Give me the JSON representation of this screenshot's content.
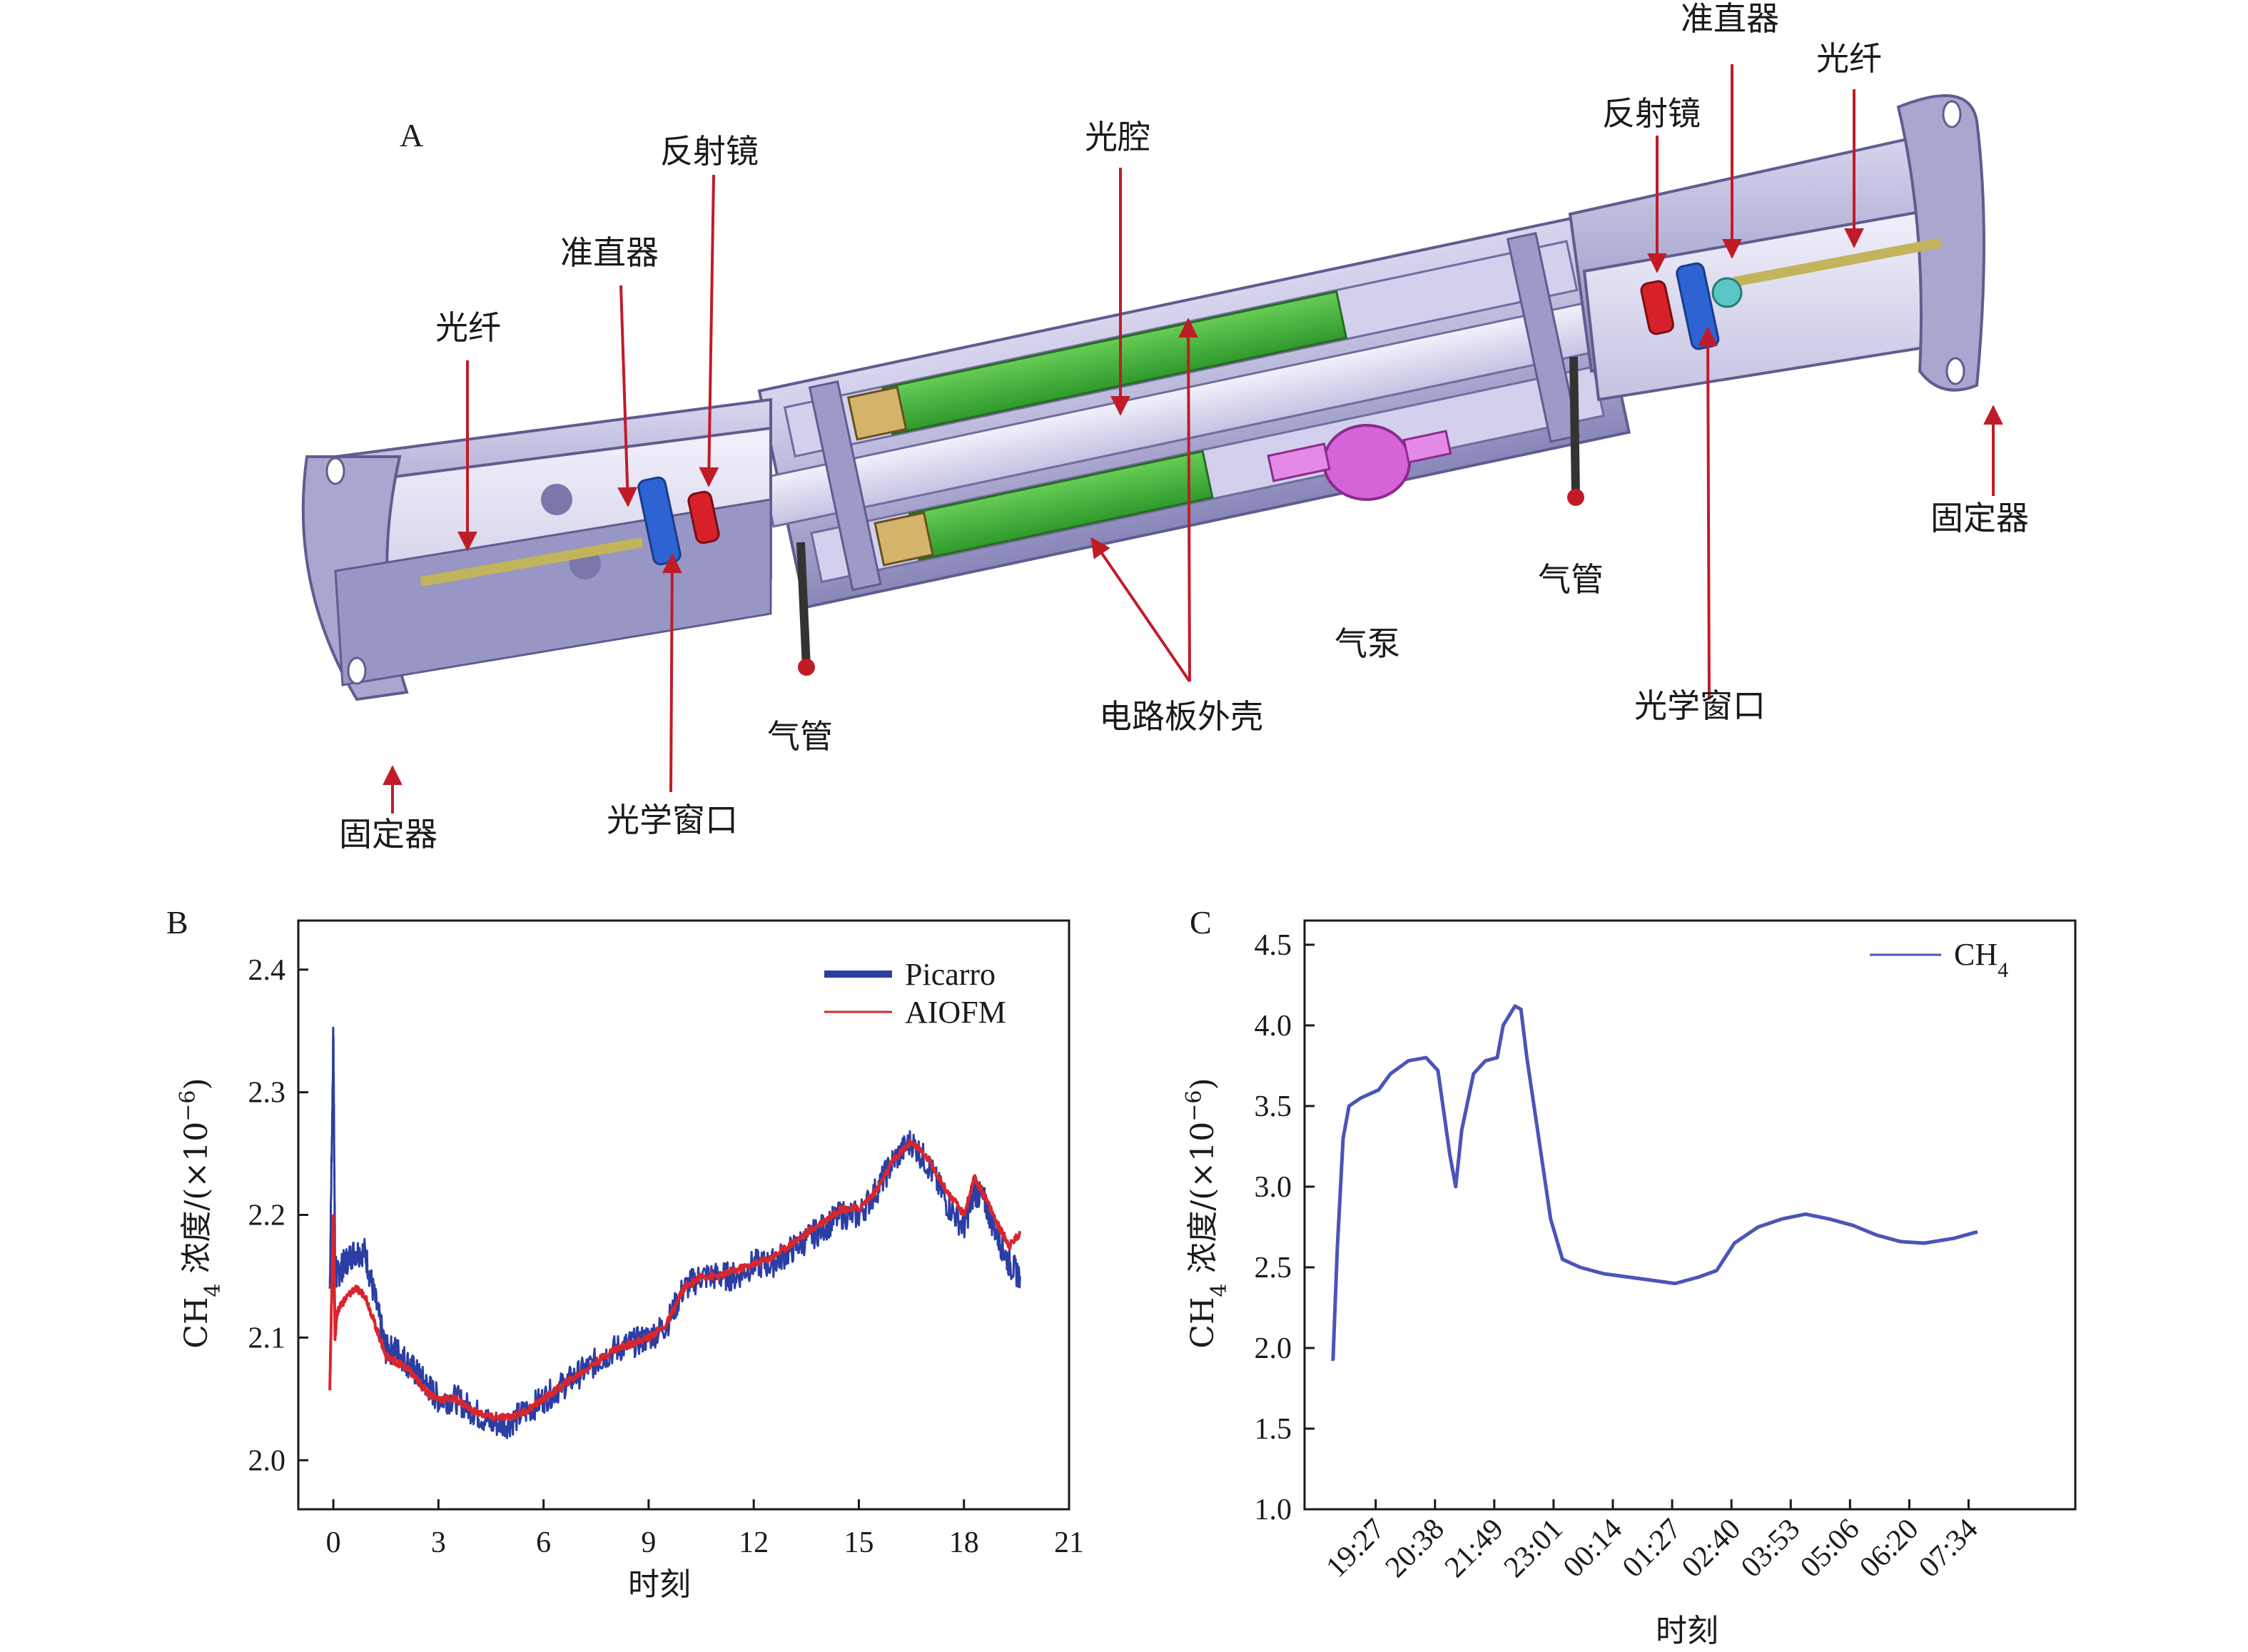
{
  "panel_a": {
    "letter": "A",
    "labels": {
      "fiber_left": "光纤",
      "collimator_left": "准直器",
      "mirror_left": "反射镜",
      "cavity": "光腔",
      "collimator_right": "准直器",
      "mirror_right": "反射镜",
      "fiber_right": "光纤",
      "fixer_left": "固定器",
      "window_left": "光学窗口",
      "gas_tube_left": "气管",
      "board_housing": "电路板外壳",
      "gas_pump": "气泵",
      "gas_tube_right": "气管",
      "window_right": "光学窗口",
      "fixer_right": "固定器"
    },
    "colors": {
      "housing": "#b9b7dc",
      "board": "#3fb23a",
      "mirror": "#d8202a",
      "window": "#2d63d2",
      "pump": "#d564d8",
      "arrow": "#c01c28"
    }
  },
  "chart_data": [
    {
      "panel": "B",
      "type": "line",
      "xlabel": "时刻",
      "ylabel_main": "CH",
      "ylabel_sub": "4",
      "ylabel_rest": "浓度/(×10",
      "ylabel_exp": "−6",
      "ylabel_end": ")",
      "xlim": [
        -1,
        21
      ],
      "ylim": [
        1.96,
        2.44
      ],
      "xticks": [
        0,
        3,
        6,
        9,
        12,
        15,
        18,
        21
      ],
      "yticks": [
        2.0,
        2.1,
        2.2,
        2.3,
        2.4
      ],
      "ytick_labels": [
        "2.0",
        "2.1",
        "2.2",
        "2.3",
        "2.4"
      ],
      "legend_position": "top-right",
      "series": [
        {
          "name": "Picarro",
          "color": "#2b3ea3",
          "x": [
            -0.1,
            0,
            0.05,
            0.1,
            0.3,
            0.6,
            0.9,
            1.2,
            1.5,
            1.8,
            2.1,
            2.4,
            2.7,
            3.0,
            3.5,
            4.0,
            4.5,
            5.0,
            5.5,
            6.0,
            6.5,
            7.0,
            7.5,
            8.0,
            8.5,
            9.0,
            9.5,
            10.0,
            10.5,
            11.0,
            11.5,
            12.0,
            12.5,
            13.0,
            13.5,
            14.0,
            14.5,
            15.0,
            15.5,
            16.0,
            16.5,
            17.0,
            17.5,
            18.0,
            18.3,
            18.6,
            19.0,
            19.3,
            19.6
          ],
          "y": [
            2.14,
            2.35,
            2.16,
            2.15,
            2.16,
            2.17,
            2.17,
            2.13,
            2.09,
            2.09,
            2.08,
            2.07,
            2.06,
            2.05,
            2.05,
            2.04,
            2.03,
            2.03,
            2.04,
            2.05,
            2.06,
            2.07,
            2.08,
            2.09,
            2.095,
            2.1,
            2.11,
            2.14,
            2.15,
            2.15,
            2.15,
            2.16,
            2.16,
            2.17,
            2.18,
            2.19,
            2.2,
            2.2,
            2.22,
            2.245,
            2.26,
            2.24,
            2.21,
            2.19,
            2.22,
            2.21,
            2.18,
            2.16,
            2.15
          ],
          "noise": 0.012
        },
        {
          "name": "AIOFM",
          "color": "#d8262e",
          "x": [
            -0.1,
            0,
            0.05,
            0.1,
            0.3,
            0.6,
            0.9,
            1.2,
            1.5,
            1.8,
            2.1,
            2.4,
            2.7,
            3.0,
            3.5,
            4.0,
            4.5,
            5.0,
            5.5,
            6.0,
            6.5,
            7.0,
            7.5,
            8.0,
            8.5,
            9.0,
            9.5,
            10.0,
            10.5,
            11.0,
            11.5,
            12.0,
            12.5,
            13.0,
            13.5,
            14.0,
            14.5,
            15.0,
            15.5,
            16.0,
            16.5,
            17.0,
            17.5,
            18.0,
            18.3,
            18.6,
            19.0,
            19.3,
            19.6
          ],
          "y": [
            2.06,
            2.2,
            2.1,
            2.12,
            2.13,
            2.14,
            2.135,
            2.11,
            2.085,
            2.08,
            2.075,
            2.065,
            2.055,
            2.05,
            2.05,
            2.04,
            2.035,
            2.035,
            2.04,
            2.05,
            2.06,
            2.07,
            2.08,
            2.09,
            2.095,
            2.1,
            2.11,
            2.14,
            2.15,
            2.15,
            2.155,
            2.16,
            2.165,
            2.175,
            2.185,
            2.195,
            2.205,
            2.205,
            2.22,
            2.245,
            2.26,
            2.245,
            2.22,
            2.2,
            2.23,
            2.215,
            2.19,
            2.175,
            2.185
          ],
          "noise": 0.003
        }
      ]
    },
    {
      "panel": "C",
      "type": "line",
      "xlabel": "时刻",
      "ylabel_main": "CH",
      "ylabel_sub": "4",
      "ylabel_rest": "浓度/(×10",
      "ylabel_exp": "−6",
      "ylabel_end": ")",
      "ylim": [
        1.0,
        4.65
      ],
      "yticks": [
        1.0,
        1.5,
        2.0,
        2.5,
        3.0,
        3.5,
        4.0,
        4.5
      ],
      "ytick_labels": [
        "1.0",
        "1.5",
        "2.0",
        "2.5",
        "3.0",
        "3.5",
        "4.0",
        "4.5"
      ],
      "xticks_labels": [
        "19:27",
        "20:38",
        "21:49",
        "23:01",
        "00:14",
        "01:27",
        "02:40",
        "03:53",
        "05:06",
        "06:20",
        "07:34"
      ],
      "legend_position": "top-right",
      "series": [
        {
          "name": "CH",
          "name_sub": "4",
          "color": "#4a55b8",
          "x": [
            0,
            0.03,
            0.1,
            0.2,
            0.3,
            0.5,
            0.8,
            1.0,
            1.3,
            1.6,
            1.8,
            2.0,
            2.1,
            2.2,
            2.4,
            2.6,
            2.8,
            2.9,
            3.1,
            3.2,
            3.3,
            3.5,
            3.7,
            3.9,
            4.2,
            4.6,
            5.0,
            5.4,
            5.8,
            6.2,
            6.5,
            6.8,
            7.2,
            7.6,
            8.0,
            8.4,
            8.8,
            9.2,
            9.6,
            10.0,
            10.5,
            10.9
          ],
          "y": [
            1.93,
            1.93,
            2.6,
            3.3,
            3.5,
            3.55,
            3.6,
            3.7,
            3.78,
            3.8,
            3.72,
            3.2,
            3.0,
            3.35,
            3.7,
            3.78,
            3.8,
            4.0,
            4.12,
            4.1,
            3.8,
            3.3,
            2.8,
            2.55,
            2.5,
            2.46,
            2.44,
            2.42,
            2.4,
            2.44,
            2.48,
            2.65,
            2.75,
            2.8,
            2.83,
            2.8,
            2.76,
            2.7,
            2.66,
            2.65,
            2.68,
            2.72
          ]
        }
      ]
    }
  ]
}
